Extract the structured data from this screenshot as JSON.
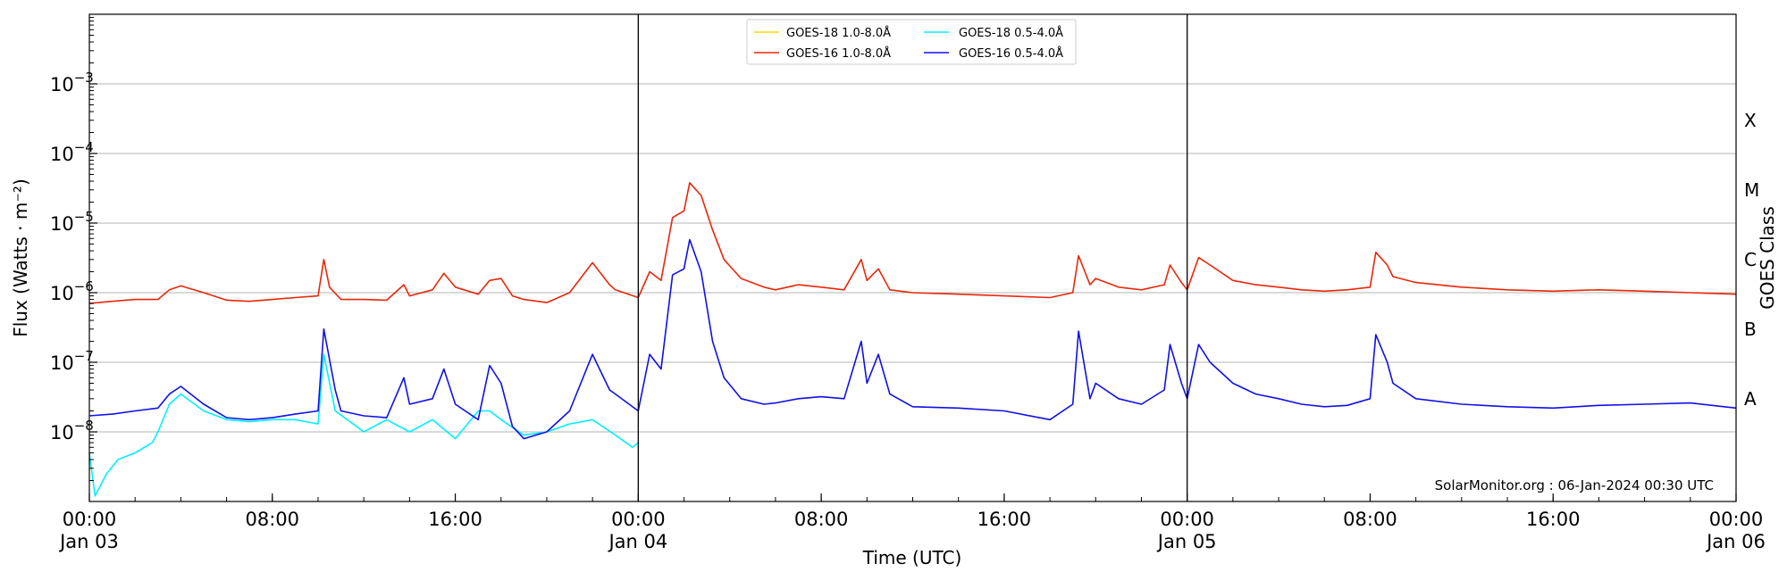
{
  "chart_data": {
    "type": "line",
    "title": "",
    "xlabel": "Time (UTC)",
    "ylabel": "Flux (Watts · m⁻²)",
    "ylabel_right": "GOES Class",
    "y_scale": "log",
    "ylim": [
      1e-09,
      0.01
    ],
    "xlim": [
      "2024-01-03 00:00",
      "2024-01-06 00:00"
    ],
    "grid": "horizontal at decades",
    "legend_position": "top-center",
    "y_tick_labels": [
      {
        "value": 1e-08,
        "base": "10",
        "exp": "−8"
      },
      {
        "value": 1e-07,
        "base": "10",
        "exp": "−7"
      },
      {
        "value": 1e-06,
        "base": "10",
        "exp": "−6"
      },
      {
        "value": 1e-05,
        "base": "10",
        "exp": "−5"
      },
      {
        "value": 0.0001,
        "base": "10",
        "exp": "−4"
      },
      {
        "value": 0.001,
        "base": "10",
        "exp": "−3"
      }
    ],
    "x_ticks": [
      {
        "t": "2024-01-03 00:00",
        "line1": "00:00",
        "line2": "Jan 03"
      },
      {
        "t": "2024-01-03 08:00",
        "line1": "08:00",
        "line2": ""
      },
      {
        "t": "2024-01-03 16:00",
        "line1": "16:00",
        "line2": ""
      },
      {
        "t": "2024-01-04 00:00",
        "line1": "00:00",
        "line2": "Jan 04"
      },
      {
        "t": "2024-01-04 08:00",
        "line1": "08:00",
        "line2": ""
      },
      {
        "t": "2024-01-04 16:00",
        "line1": "16:00",
        "line2": ""
      },
      {
        "t": "2024-01-05 00:00",
        "line1": "00:00",
        "line2": "Jan 05"
      },
      {
        "t": "2024-01-05 08:00",
        "line1": "08:00",
        "line2": ""
      },
      {
        "t": "2024-01-05 16:00",
        "line1": "16:00",
        "line2": ""
      },
      {
        "t": "2024-01-06 00:00",
        "line1": "00:00",
        "line2": "Jan 06"
      }
    ],
    "day_boundaries": [
      "2024-01-04 00:00",
      "2024-01-05 00:00"
    ],
    "goes_classes": [
      {
        "label": "A",
        "y": 3e-08
      },
      {
        "label": "B",
        "y": 3e-07
      },
      {
        "label": "C",
        "y": 3e-06
      },
      {
        "label": "M",
        "y": 3e-05
      },
      {
        "label": "X",
        "y": 0.0003
      }
    ],
    "annotation": "SolarMonitor.org : 06-Jan-2024 00:30 UTC",
    "series": [
      {
        "name": "GOES-18 1.0-8.0Å",
        "color": "#ffd700",
        "x": [],
        "y": []
      },
      {
        "name": "GOES-16 1.0-8.0Å",
        "color": "#e8270a",
        "x": [
          "2024-01-03 00:00",
          "2024-01-03 01:00",
          "2024-01-03 02:00",
          "2024-01-03 03:00",
          "2024-01-03 03:30",
          "2024-01-03 04:00",
          "2024-01-03 05:00",
          "2024-01-03 06:00",
          "2024-01-03 07:00",
          "2024-01-03 08:00",
          "2024-01-03 09:00",
          "2024-01-03 10:00",
          "2024-01-03 10:15",
          "2024-01-03 10:30",
          "2024-01-03 11:00",
          "2024-01-03 12:00",
          "2024-01-03 13:00",
          "2024-01-03 13:45",
          "2024-01-03 14:00",
          "2024-01-03 15:00",
          "2024-01-03 15:30",
          "2024-01-03 16:00",
          "2024-01-03 17:00",
          "2024-01-03 17:30",
          "2024-01-03 18:00",
          "2024-01-03 18:30",
          "2024-01-03 19:00",
          "2024-01-03 20:00",
          "2024-01-03 21:00",
          "2024-01-03 22:00",
          "2024-01-03 22:45",
          "2024-01-03 23:00",
          "2024-01-04 00:00",
          "2024-01-04 00:30",
          "2024-01-04 01:00",
          "2024-01-04 01:30",
          "2024-01-04 02:00",
          "2024-01-04 02:15",
          "2024-01-04 02:45",
          "2024-01-04 03:15",
          "2024-01-04 03:45",
          "2024-01-04 04:30",
          "2024-01-04 05:30",
          "2024-01-04 06:00",
          "2024-01-04 07:00",
          "2024-01-04 08:00",
          "2024-01-04 09:00",
          "2024-01-04 09:45",
          "2024-01-04 10:00",
          "2024-01-04 10:30",
          "2024-01-04 11:00",
          "2024-01-04 12:00",
          "2024-01-04 14:00",
          "2024-01-04 16:00",
          "2024-01-04 18:00",
          "2024-01-04 19:00",
          "2024-01-04 19:15",
          "2024-01-04 19:45",
          "2024-01-04 20:00",
          "2024-01-04 21:00",
          "2024-01-04 22:00",
          "2024-01-04 23:00",
          "2024-01-04 23:15",
          "2024-01-04 23:45",
          "2024-01-05 00:00",
          "2024-01-05 00:30",
          "2024-01-05 01:00",
          "2024-01-05 02:00",
          "2024-01-05 03:00",
          "2024-01-05 04:00",
          "2024-01-05 05:00",
          "2024-01-05 06:00",
          "2024-01-05 07:00",
          "2024-01-05 08:00",
          "2024-01-05 08:15",
          "2024-01-05 08:45",
          "2024-01-05 09:00",
          "2024-01-05 10:00",
          "2024-01-05 12:00",
          "2024-01-05 14:00",
          "2024-01-05 16:00",
          "2024-01-05 18:00",
          "2024-01-05 20:00",
          "2024-01-05 22:00",
          "2024-01-06 00:00"
        ],
        "y": [
          7e-07,
          7.5e-07,
          8e-07,
          8e-07,
          1.1e-06,
          1.25e-06,
          1e-06,
          7.8e-07,
          7.5e-07,
          8e-07,
          8.5e-07,
          9e-07,
          3e-06,
          1.2e-06,
          8e-07,
          8e-07,
          7.8e-07,
          1.3e-06,
          9e-07,
          1.1e-06,
          1.9e-06,
          1.2e-06,
          9.5e-07,
          1.5e-06,
          1.6e-06,
          9e-07,
          8e-07,
          7.2e-07,
          1e-06,
          2.7e-06,
          1.3e-06,
          1.1e-06,
          8.5e-07,
          2e-06,
          1.5e-06,
          1.2e-05,
          1.5e-05,
          3.8e-05,
          2.5e-05,
          8e-06,
          3e-06,
          1.6e-06,
          1.2e-06,
          1.1e-06,
          1.3e-06,
          1.2e-06,
          1.1e-06,
          3e-06,
          1.5e-06,
          2.2e-06,
          1.1e-06,
          1e-06,
          9.5e-07,
          9e-07,
          8.5e-07,
          1e-06,
          3.4e-06,
          1.3e-06,
          1.6e-06,
          1.2e-06,
          1.1e-06,
          1.3e-06,
          2.5e-06,
          1.4e-06,
          1.1e-06,
          3.2e-06,
          2.5e-06,
          1.5e-06,
          1.3e-06,
          1.2e-06,
          1.1e-06,
          1.05e-06,
          1.1e-06,
          1.2e-06,
          3.8e-06,
          2.5e-06,
          1.7e-06,
          1.4e-06,
          1.2e-06,
          1.1e-06,
          1.05e-06,
          1.1e-06,
          1.05e-06,
          1e-06,
          9.5e-07
        ]
      },
      {
        "name": "GOES-18 0.5-4.0Å",
        "color": "#00f0ff",
        "x": [
          "2024-01-03 00:00",
          "2024-01-03 00:15",
          "2024-01-03 00:45",
          "2024-01-03 01:15",
          "2024-01-03 02:00",
          "2024-01-03 02:45",
          "2024-01-03 03:00",
          "2024-01-03 03:30",
          "2024-01-03 04:00",
          "2024-01-03 05:00",
          "2024-01-03 06:00",
          "2024-01-03 07:00",
          "2024-01-03 08:00",
          "2024-01-03 09:00",
          "2024-01-03 10:00",
          "2024-01-03 10:15",
          "2024-01-03 10:45",
          "2024-01-03 12:00",
          "2024-01-03 13:00",
          "2024-01-03 14:00",
          "2024-01-03 15:00",
          "2024-01-03 16:00",
          "2024-01-03 17:00",
          "2024-01-03 17:30",
          "2024-01-03 18:00",
          "2024-01-03 19:00",
          "2024-01-03 20:00",
          "2024-01-03 21:00",
          "2024-01-03 22:00",
          "2024-01-03 23:00",
          "2024-01-03 23:45",
          "2024-01-04 00:00"
        ],
        "y": [
          5e-09,
          1.2e-09,
          2.5e-09,
          4e-09,
          5e-09,
          7e-09,
          1e-08,
          2.5e-08,
          3.5e-08,
          2e-08,
          1.5e-08,
          1.4e-08,
          1.5e-08,
          1.5e-08,
          1.3e-08,
          1.3e-07,
          2e-08,
          1e-08,
          1.5e-08,
          1e-08,
          1.5e-08,
          8e-09,
          2e-08,
          2e-08,
          1.5e-08,
          9e-09,
          1e-08,
          1.3e-08,
          1.5e-08,
          9e-09,
          6e-09,
          7e-09
        ]
      },
      {
        "name": "GOES-16 0.5-4.0Å",
        "color": "#1010e8",
        "x": [
          "2024-01-03 00:00",
          "2024-01-03 01:00",
          "2024-01-03 02:00",
          "2024-01-03 03:00",
          "2024-01-03 03:30",
          "2024-01-03 04:00",
          "2024-01-03 05:00",
          "2024-01-03 06:00",
          "2024-01-03 07:00",
          "2024-01-03 08:00",
          "2024-01-03 09:00",
          "2024-01-03 10:00",
          "2024-01-03 10:15",
          "2024-01-03 10:45",
          "2024-01-03 11:00",
          "2024-01-03 12:00",
          "2024-01-03 13:00",
          "2024-01-03 13:45",
          "2024-01-03 14:00",
          "2024-01-03 15:00",
          "2024-01-03 15:30",
          "2024-01-03 16:00",
          "2024-01-03 17:00",
          "2024-01-03 17:30",
          "2024-01-03 18:00",
          "2024-01-03 18:30",
          "2024-01-03 19:00",
          "2024-01-03 20:00",
          "2024-01-03 21:00",
          "2024-01-03 22:00",
          "2024-01-03 22:45",
          "2024-01-03 23:00",
          "2024-01-04 00:00",
          "2024-01-04 00:30",
          "2024-01-04 01:00",
          "2024-01-04 01:30",
          "2024-01-04 02:00",
          "2024-01-04 02:15",
          "2024-01-04 02:45",
          "2024-01-04 03:15",
          "2024-01-04 03:45",
          "2024-01-04 04:30",
          "2024-01-04 05:30",
          "2024-01-04 06:00",
          "2024-01-04 07:00",
          "2024-01-04 08:00",
          "2024-01-04 09:00",
          "2024-01-04 09:45",
          "2024-01-04 10:00",
          "2024-01-04 10:30",
          "2024-01-04 11:00",
          "2024-01-04 12:00",
          "2024-01-04 14:00",
          "2024-01-04 16:00",
          "2024-01-04 18:00",
          "2024-01-04 19:00",
          "2024-01-04 19:15",
          "2024-01-04 19:45",
          "2024-01-04 20:00",
          "2024-01-04 21:00",
          "2024-01-04 22:00",
          "2024-01-04 23:00",
          "2024-01-04 23:15",
          "2024-01-04 23:45",
          "2024-01-05 00:00",
          "2024-01-05 00:30",
          "2024-01-05 01:00",
          "2024-01-05 02:00",
          "2024-01-05 03:00",
          "2024-01-05 04:00",
          "2024-01-05 05:00",
          "2024-01-05 06:00",
          "2024-01-05 07:00",
          "2024-01-05 08:00",
          "2024-01-05 08:15",
          "2024-01-05 08:45",
          "2024-01-05 09:00",
          "2024-01-05 10:00",
          "2024-01-05 12:00",
          "2024-01-05 14:00",
          "2024-01-05 16:00",
          "2024-01-05 18:00",
          "2024-01-05 20:00",
          "2024-01-05 22:00",
          "2024-01-06 00:00"
        ],
        "y": [
          1.7e-08,
          1.8e-08,
          2e-08,
          2.2e-08,
          3.5e-08,
          4.5e-08,
          2.5e-08,
          1.6e-08,
          1.5e-08,
          1.6e-08,
          1.8e-08,
          2e-08,
          3e-07,
          4e-08,
          2e-08,
          1.7e-08,
          1.6e-08,
          6e-08,
          2.5e-08,
          3e-08,
          8e-08,
          2.5e-08,
          1.5e-08,
          9e-08,
          5e-08,
          1.2e-08,
          8e-09,
          1e-08,
          2e-08,
          1.3e-07,
          4e-08,
          3.5e-08,
          2e-08,
          1.3e-07,
          8e-08,
          1.8e-06,
          2.2e-06,
          5.8e-06,
          2e-06,
          2e-07,
          6e-08,
          3e-08,
          2.5e-08,
          2.6e-08,
          3e-08,
          3.2e-08,
          3e-08,
          2e-07,
          5e-08,
          1.3e-07,
          3.5e-08,
          2.3e-08,
          2.2e-08,
          2e-08,
          1.5e-08,
          2.5e-08,
          2.8e-07,
          3e-08,
          5e-08,
          3e-08,
          2.5e-08,
          4e-08,
          1.8e-07,
          5e-08,
          3e-08,
          1.8e-07,
          1e-07,
          5e-08,
          3.5e-08,
          3e-08,
          2.5e-08,
          2.3e-08,
          2.4e-08,
          3e-08,
          2.5e-07,
          1e-07,
          5e-08,
          3e-08,
          2.5e-08,
          2.3e-08,
          2.2e-08,
          2.4e-08,
          2.5e-08,
          2.6e-08,
          2.2e-08
        ]
      }
    ]
  }
}
